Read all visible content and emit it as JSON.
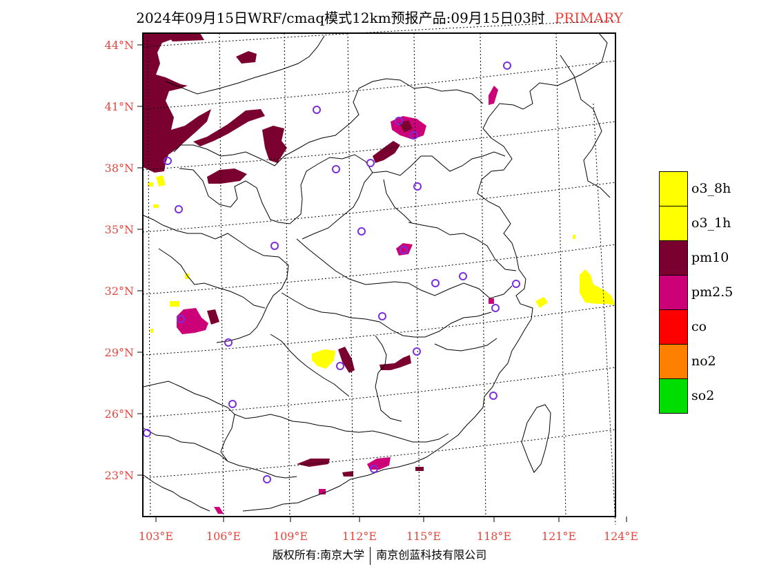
{
  "title": {
    "main": "2024年09月15日WRF/cmaq模式12km预报产品:09月15日03时",
    "tag": "PRIMARY"
  },
  "colors": {
    "axis_text": "#e8443c",
    "o3_8h": "#ffff00",
    "o3_1h": "#ffff00",
    "pm10": "#7a0030",
    "pm2_5": "#cc0077",
    "co": "#ff0000",
    "no2": "#ff7f00",
    "so2": "#00dd00",
    "station_ring": "#7a2ee0"
  },
  "map": {
    "lat_labels": [
      "44°N",
      "41°N",
      "38°N",
      "35°N",
      "32°N",
      "29°N",
      "26°N",
      "23°N"
    ],
    "lon_labels": [
      "103°E",
      "106°E",
      "109°E",
      "112°E",
      "115°E",
      "118°E",
      "121°E",
      "124°E"
    ],
    "station_marker": "station-ring-icon"
  },
  "legend": {
    "items": [
      {
        "label": "o3_8h",
        "color": "#ffff00"
      },
      {
        "label": "o3_1h",
        "color": "#ffff00"
      },
      {
        "label": "pm10",
        "color": "#7a0030"
      },
      {
        "label": "pm2.5",
        "color": "#cc0077"
      },
      {
        "label": "co",
        "color": "#ff0000"
      },
      {
        "label": "no2",
        "color": "#ff7f00"
      },
      {
        "label": "so2",
        "color": "#00dd00"
      }
    ]
  },
  "footer": {
    "left": "版权所有:南京大学",
    "right": "南京创蓝科技有限公司"
  }
}
